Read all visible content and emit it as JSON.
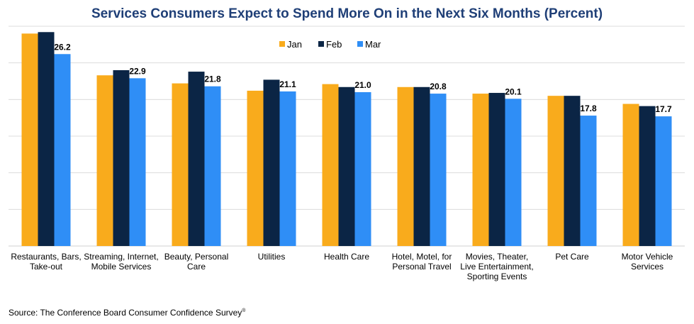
{
  "chart_data": {
    "type": "bar",
    "title": "Services Consumers Expect to Spend More On in the Next Six Months (Percent)",
    "xlabel": "",
    "ylabel": "",
    "ylim": [
      0,
      30
    ],
    "grid": true,
    "legend_position": "top-center",
    "categories": [
      [
        "Restaurants, Bars,",
        "Take-out"
      ],
      [
        "Streaming, Internet,",
        "Mobile Services"
      ],
      [
        "Beauty, Personal",
        "Care"
      ],
      [
        "Utilities"
      ],
      [
        "Health Care"
      ],
      [
        "Hotel, Motel, for",
        "Personal Travel"
      ],
      [
        "Movies, Theater,",
        "Live Entertainment,",
        "Sporting Events"
      ],
      [
        "Pet Care"
      ],
      [
        "Motor Vehicle",
        "Services"
      ]
    ],
    "series": [
      {
        "name": "Jan",
        "color": "#f9ab1c",
        "values": [
          29.0,
          23.3,
          22.2,
          21.2,
          22.1,
          21.7,
          20.8,
          20.5,
          19.4
        ]
      },
      {
        "name": "Feb",
        "color": "#0b2545",
        "values": [
          29.2,
          24.0,
          23.8,
          22.7,
          21.7,
          21.7,
          20.9,
          20.5,
          19.1
        ]
      },
      {
        "name": "Mar",
        "color": "#2f8ef6",
        "values": [
          26.2,
          22.9,
          21.8,
          21.1,
          21.0,
          20.8,
          20.1,
          17.8,
          17.7
        ]
      }
    ],
    "data_labels": [
      "26.2",
      "22.9",
      "21.8",
      "21.1",
      "21.0",
      "20.8",
      "20.1",
      "17.8",
      "17.7"
    ]
  },
  "source": {
    "text": "Source: The Conference Board Consumer Confidence Survey",
    "mark": "®"
  }
}
